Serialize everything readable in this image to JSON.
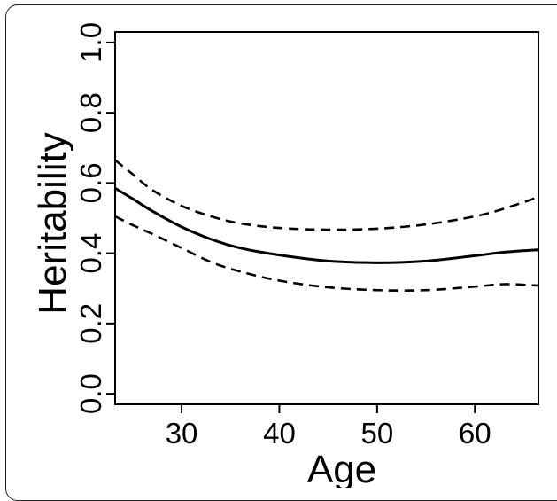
{
  "chart_data": {
    "type": "line",
    "title": "",
    "xlabel": "Age",
    "ylabel": "Heritability",
    "xlim": [
      23.2,
      66.5
    ],
    "ylim": [
      -0.03,
      1.03
    ],
    "x_ticks": [
      30,
      40,
      50,
      60
    ],
    "x_tick_labels": [
      "30",
      "40",
      "50",
      "60"
    ],
    "y_ticks": [
      0.0,
      0.2,
      0.4,
      0.6,
      0.8,
      1.0
    ],
    "y_tick_labels": [
      "0.0",
      "0.2",
      "0.4",
      "0.6",
      "0.8",
      "1.0"
    ],
    "grid": false,
    "legend": "none",
    "series": [
      {
        "style": "solid",
        "x": [
          23.2,
          25,
          27,
          30,
          33,
          36,
          40,
          45,
          50,
          55,
          60,
          63,
          66.5
        ],
        "y": [
          0.585,
          0.555,
          0.52,
          0.475,
          0.44,
          0.415,
          0.395,
          0.378,
          0.373,
          0.378,
          0.393,
          0.403,
          0.41
        ]
      },
      {
        "style": "dashed",
        "x": [
          23.2,
          25,
          27,
          30,
          33,
          36,
          40,
          45,
          50,
          55,
          60,
          63,
          66.5
        ],
        "y": [
          0.665,
          0.625,
          0.58,
          0.535,
          0.505,
          0.485,
          0.472,
          0.467,
          0.47,
          0.482,
          0.505,
          0.527,
          0.56
        ]
      },
      {
        "style": "dashed",
        "x": [
          23.2,
          25,
          27,
          30,
          33,
          36,
          40,
          45,
          50,
          55,
          60,
          63,
          66.5
        ],
        "y": [
          0.505,
          0.48,
          0.455,
          0.415,
          0.375,
          0.348,
          0.322,
          0.303,
          0.295,
          0.295,
          0.305,
          0.312,
          0.308
        ]
      }
    ]
  }
}
